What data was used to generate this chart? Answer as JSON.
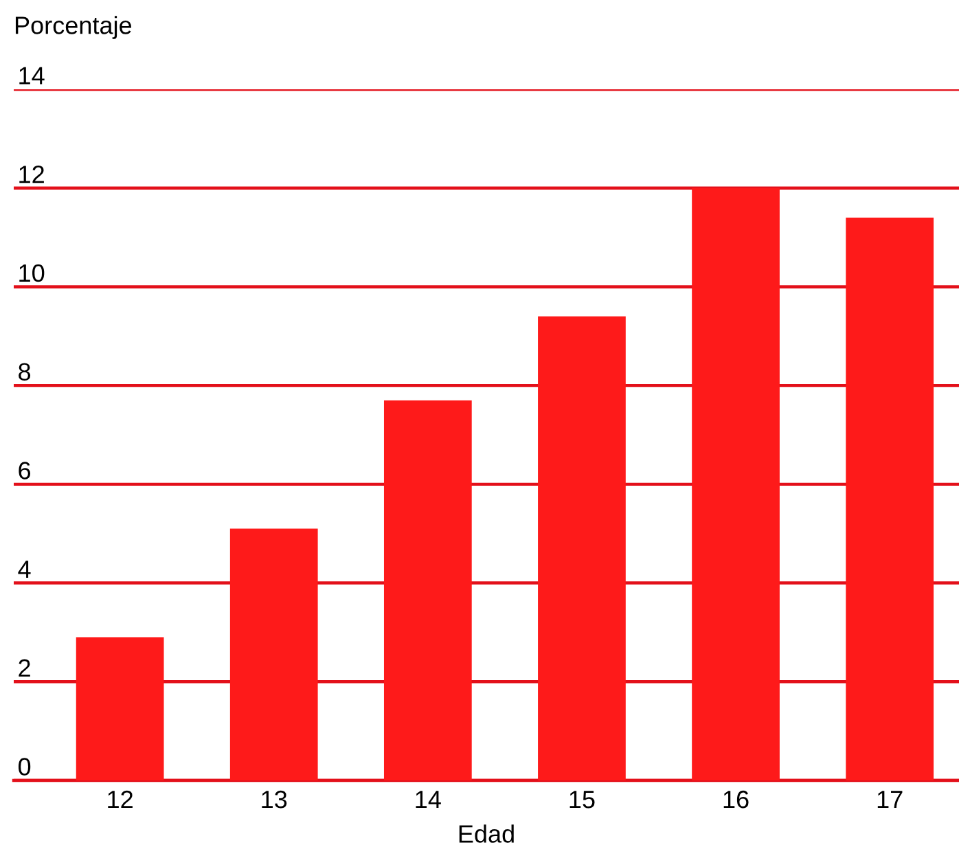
{
  "chart_data": {
    "type": "bar",
    "ylabel": "Porcentaje",
    "xlabel": "Edad",
    "categories": [
      "12",
      "13",
      "14",
      "15",
      "16",
      "17"
    ],
    "values": [
      2.9,
      5.1,
      7.7,
      9.4,
      12.0,
      11.4
    ],
    "color": "#fe1a1a",
    "ylim": [
      0,
      14
    ],
    "yticks": [
      0,
      2,
      4,
      6,
      8,
      10,
      12,
      14
    ],
    "grid": "y"
  }
}
